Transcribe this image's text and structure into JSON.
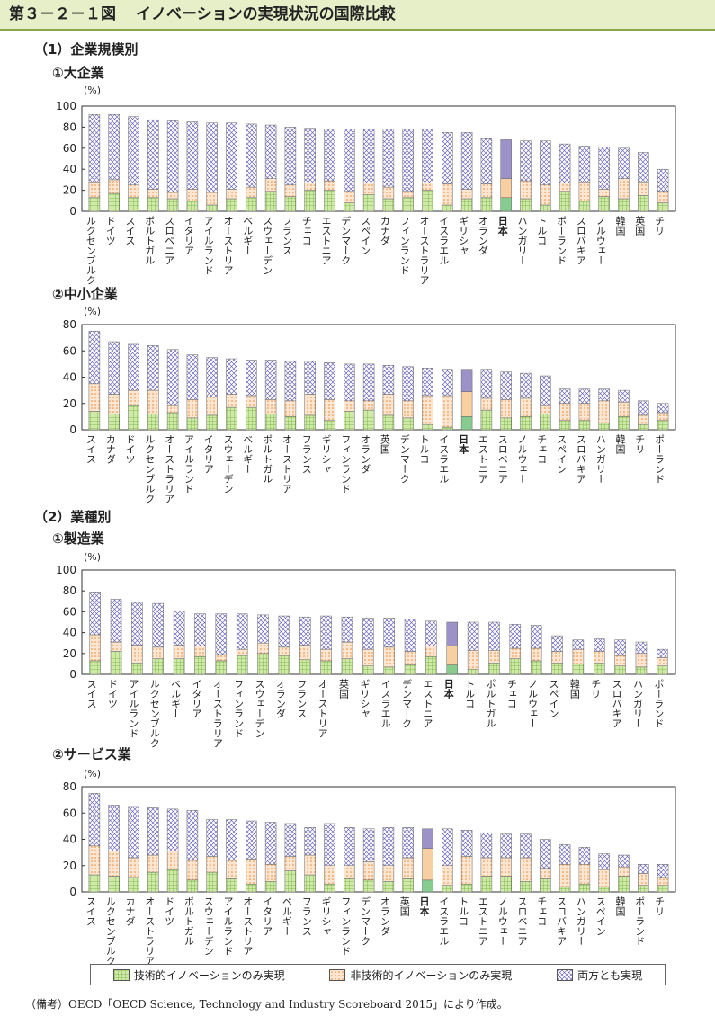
{
  "figure_title": {
    "number": "第３－２－１図",
    "text": "イノベーションの実現状況の国際比較"
  },
  "sections": {
    "s1": "（1）企業規模別",
    "s1a": "①大企業",
    "s1b": "②中小企業",
    "s2": "（2）業種別",
    "s2a": "①製造業",
    "s2b": "②サービス業"
  },
  "legend": {
    "tech": "技術的イノベーションのみ実現",
    "nontech": "非技術的イノベーションのみ実現",
    "both": "両方とも実現"
  },
  "source_note": "（備考）OECD「OECD Science, Technology and Industry Scoreboard 2015」により作成。",
  "colors": {
    "tech": "#a6d66a",
    "nontech": "#f4b27a",
    "both": "#a9a4d8",
    "japan_tech": "#86cc8f",
    "japan_nontech": "#f7cfa0",
    "japan_both": "#9c92c8"
  },
  "chart_data": [
    {
      "id": "large",
      "type": "bar",
      "stacked": true,
      "ylabel": "(%)",
      "ylim": [
        0,
        100
      ],
      "yticks": [
        0,
        20,
        40,
        60,
        80,
        100
      ],
      "categories": [
        "ルクセンブルク",
        "ドイツ",
        "スイス",
        "ポルトガル",
        "スロベニア",
        "イタリア",
        "アイルランド",
        "オーストリア",
        "ベルギー",
        "スウェーデン",
        "フランス",
        "チェコ",
        "エストニア",
        "デンマーク",
        "スペイン",
        "カナダ",
        "フィンランド",
        "オーストラリア",
        "イスラエル",
        "ギリシャ",
        "オランダ",
        "日本",
        "ハンガリー",
        "トルコ",
        "ポーランド",
        "スロバキア",
        "ノルウェー",
        "韓国",
        "英国",
        "チリ"
      ],
      "series": [
        {
          "name": "技術的イノベーションのみ実現",
          "values": [
            13,
            17,
            13,
            13,
            12,
            10,
            6,
            12,
            13,
            19,
            14,
            20,
            20,
            8,
            16,
            12,
            13,
            20,
            6,
            12,
            13,
            13,
            12,
            6,
            19,
            10,
            14,
            12,
            15,
            8
          ]
        },
        {
          "name": "非技術的イノベーションのみ実現",
          "values": [
            15,
            13,
            12,
            8,
            6,
            11,
            12,
            9,
            10,
            12,
            11,
            7,
            9,
            11,
            11,
            11,
            6,
            7,
            20,
            9,
            13,
            18,
            17,
            19,
            8,
            18,
            7,
            19,
            13,
            11
          ]
        },
        {
          "name": "両方とも実現",
          "values": [
            64,
            62,
            65,
            66,
            68,
            64,
            66,
            63,
            60,
            51,
            55,
            52,
            49,
            59,
            51,
            55,
            59,
            51,
            49,
            54,
            43,
            37,
            38,
            42,
            37,
            34,
            40,
            29,
            28,
            21
          ]
        }
      ]
    },
    {
      "id": "sme",
      "type": "bar",
      "stacked": true,
      "ylabel": "(%)",
      "ylim": [
        0,
        80
      ],
      "yticks": [
        0,
        20,
        40,
        60,
        80
      ],
      "categories": [
        "スイス",
        "カナダ",
        "ドイツ",
        "ルクセンブルク",
        "オーストラリア",
        "アイルランド",
        "イタリア",
        "スウェーデン",
        "ベルギー",
        "ポルトガル",
        "オーストリア",
        "フランス",
        "ギリシャ",
        "フィンランド",
        "オランダ",
        "英国",
        "デンマーク",
        "トルコ",
        "イスラエル",
        "日本",
        "エストニア",
        "スロベニア",
        "ノルウェー",
        "チェコ",
        "スペイン",
        "スロバキア",
        "ハンガリー",
        "韓国",
        "チリ",
        "ポーランド"
      ],
      "series": [
        {
          "name": "技術的イノベーションのみ実現",
          "values": [
            14,
            12,
            19,
            12,
            13,
            9,
            11,
            17,
            17,
            12,
            10,
            11,
            7,
            14,
            15,
            11,
            9,
            4,
            2,
            10,
            15,
            9,
            10,
            12,
            7,
            7,
            5,
            10,
            4,
            7
          ]
        },
        {
          "name": "非技術的イノベーションのみ実現",
          "values": [
            21,
            15,
            11,
            18,
            6,
            14,
            14,
            10,
            9,
            11,
            12,
            16,
            16,
            8,
            7,
            16,
            13,
            22,
            24,
            19,
            9,
            14,
            14,
            7,
            13,
            13,
            17,
            11,
            7,
            6
          ]
        },
        {
          "name": "両方とも実現",
          "values": [
            40,
            40,
            35,
            34,
            42,
            34,
            30,
            27,
            27,
            30,
            30,
            25,
            28,
            28,
            28,
            22,
            26,
            21,
            20,
            17,
            22,
            21,
            19,
            22,
            11,
            11,
            9,
            9,
            11,
            7
          ]
        }
      ]
    },
    {
      "id": "manufacturing",
      "type": "bar",
      "stacked": true,
      "ylabel": "(%)",
      "ylim": [
        0,
        100
      ],
      "yticks": [
        0,
        20,
        40,
        60,
        80,
        100
      ],
      "categories": [
        "スイス",
        "ドイツ",
        "アイルランド",
        "ルクセンブルク",
        "ベルギー",
        "イタリア",
        "オーストラリア",
        "フィンランド",
        "スウェーデン",
        "オランダ",
        "フランス",
        "オーストリア",
        "英国",
        "ギリシャ",
        "イスラエル",
        "デンマーク",
        "エストニア",
        "日本",
        "トルコ",
        "ポルトガル",
        "チェコ",
        "ノルウェー",
        "スペイン",
        "韓国",
        "チリ",
        "スロバキア",
        "ハンガリー",
        "ポーランド"
      ],
      "series": [
        {
          "name": "技術的イノベーションのみ実現",
          "values": [
            13,
            22,
            11,
            15,
            15,
            17,
            13,
            18,
            20,
            18,
            14,
            13,
            15,
            8,
            7,
            9,
            17,
            9,
            5,
            11,
            15,
            13,
            11,
            10,
            11,
            8,
            7,
            8
          ]
        },
        {
          "name": "非技術的イノベーションのみ実現",
          "values": [
            25,
            9,
            17,
            11,
            13,
            10,
            6,
            6,
            10,
            8,
            14,
            11,
            16,
            16,
            19,
            13,
            10,
            18,
            18,
            12,
            10,
            12,
            11,
            14,
            11,
            10,
            13,
            8
          ]
        },
        {
          "name": "両方とも実現",
          "values": [
            41,
            41,
            41,
            42,
            33,
            31,
            39,
            34,
            27,
            30,
            27,
            32,
            24,
            30,
            28,
            31,
            24,
            23,
            27,
            27,
            23,
            22,
            15,
            9,
            12,
            15,
            11,
            8
          ]
        }
      ]
    },
    {
      "id": "services",
      "type": "bar",
      "stacked": true,
      "ylabel": "(%)",
      "ylim": [
        0,
        80
      ],
      "yticks": [
        0,
        20,
        40,
        60,
        80
      ],
      "categories": [
        "スイス",
        "ルクセンブルク",
        "カナダ",
        "オーストラリア",
        "ドイツ",
        "ポルトガル",
        "スウェーデン",
        "アイルランド",
        "オーストリア",
        "イタリア",
        "ベルギー",
        "フランス",
        "ギリシャ",
        "フィンランド",
        "デンマーク",
        "オランダ",
        "英国",
        "日本",
        "イスラエル",
        "トルコ",
        "エストニア",
        "ノルウェー",
        "スロベニア",
        "チェコ",
        "スロバキア",
        "ハンガリー",
        "スペイン",
        "韓国",
        "ポーランド",
        "チリ"
      ],
      "series": [
        {
          "name": "技術的イノベーションのみ実現",
          "values": [
            13,
            12,
            11,
            15,
            17,
            9,
            15,
            10,
            6,
            8,
            16,
            13,
            6,
            10,
            9,
            8,
            10,
            9,
            5,
            6,
            12,
            12,
            8,
            10,
            4,
            6,
            4,
            12,
            5,
            5
          ]
        },
        {
          "name": "非技術的イノベーションのみ実現",
          "values": [
            22,
            19,
            15,
            13,
            14,
            15,
            12,
            14,
            19,
            13,
            11,
            15,
            14,
            10,
            14,
            12,
            16,
            24,
            15,
            21,
            14,
            14,
            18,
            8,
            17,
            15,
            13,
            7,
            9,
            6
          ]
        },
        {
          "name": "両方とも実現",
          "values": [
            40,
            35,
            39,
            36,
            32,
            38,
            28,
            31,
            29,
            32,
            25,
            21,
            32,
            29,
            25,
            29,
            23,
            15,
            28,
            20,
            19,
            18,
            18,
            22,
            15,
            13,
            12,
            9,
            7,
            10
          ]
        }
      ]
    }
  ]
}
